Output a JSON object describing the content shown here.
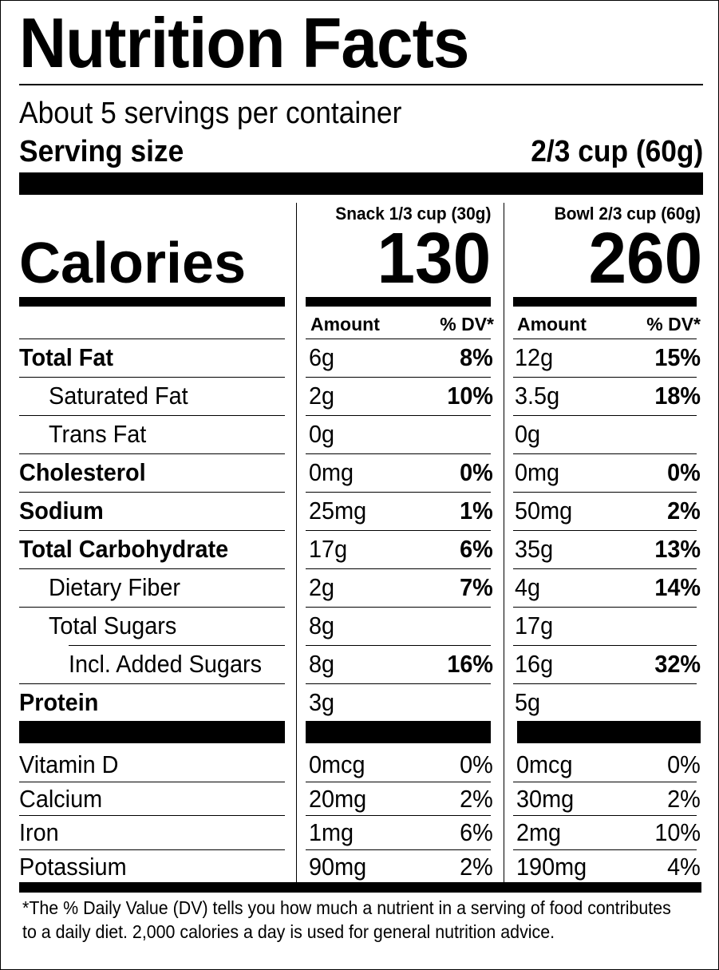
{
  "title": "Nutrition Facts",
  "servings_per_container": "About 5 servings per container",
  "serving_size": {
    "label": "Serving size",
    "value": "2/3 cup (60g)"
  },
  "columns": [
    {
      "header": "Snack 1/3 cup (30g)",
      "calories": "130",
      "amount_label": "Amount",
      "dv_label": "% DV*"
    },
    {
      "header": "Bowl 2/3 cup (60g)",
      "calories": "260",
      "amount_label": "Amount",
      "dv_label": "% DV*"
    }
  ],
  "calories_label": "Calories",
  "nutrients": [
    {
      "name": "Total Fat",
      "bold": true,
      "indent": 0,
      "snack_amount": "6g",
      "snack_dv": "8%",
      "bowl_amount": "12g",
      "bowl_dv": "15%"
    },
    {
      "name": "Saturated Fat",
      "bold": false,
      "indent": 1,
      "snack_amount": "2g",
      "snack_dv": "10%",
      "bowl_amount": "3.5g",
      "bowl_dv": "18%"
    },
    {
      "name": "Trans Fat",
      "bold": false,
      "indent": 1,
      "snack_amount": "0g",
      "snack_dv": "",
      "bowl_amount": "0g",
      "bowl_dv": ""
    },
    {
      "name": "Cholesterol",
      "bold": true,
      "indent": 0,
      "snack_amount": "0mg",
      "snack_dv": "0%",
      "bowl_amount": "0mg",
      "bowl_dv": "0%"
    },
    {
      "name": "Sodium",
      "bold": true,
      "indent": 0,
      "snack_amount": "25mg",
      "snack_dv": "1%",
      "bowl_amount": "50mg",
      "bowl_dv": "2%"
    },
    {
      "name": "Total Carbohydrate",
      "bold": true,
      "indent": 0,
      "snack_amount": "17g",
      "snack_dv": "6%",
      "bowl_amount": "35g",
      "bowl_dv": "13%"
    },
    {
      "name": "Dietary Fiber",
      "bold": false,
      "indent": 1,
      "snack_amount": "2g",
      "snack_dv": "7%",
      "bowl_amount": "4g",
      "bowl_dv": "14%"
    },
    {
      "name": "Total Sugars",
      "bold": false,
      "indent": 1,
      "snack_amount": "8g",
      "snack_dv": "",
      "bowl_amount": "17g",
      "bowl_dv": ""
    },
    {
      "name": "Incl. Added Sugars",
      "bold": false,
      "indent": 2,
      "snack_amount": "8g",
      "snack_dv": "16%",
      "bowl_amount": "16g",
      "bowl_dv": "32%"
    },
    {
      "name": "Protein",
      "bold": true,
      "indent": 0,
      "snack_amount": "3g",
      "snack_dv": "",
      "bowl_amount": "5g",
      "bowl_dv": ""
    }
  ],
  "vitamins": [
    {
      "name": "Vitamin D",
      "snack_amount": "0mcg",
      "snack_dv": "0%",
      "bowl_amount": "0mcg",
      "bowl_dv": "0%"
    },
    {
      "name": "Calcium",
      "snack_amount": "20mg",
      "snack_dv": "2%",
      "bowl_amount": "30mg",
      "bowl_dv": "2%"
    },
    {
      "name": "Iron",
      "snack_amount": "1mg",
      "snack_dv": "6%",
      "bowl_amount": "2mg",
      "bowl_dv": "10%"
    },
    {
      "name": "Potassium",
      "snack_amount": "90mg",
      "snack_dv": "2%",
      "bowl_amount": "190mg",
      "bowl_dv": "4%"
    }
  ],
  "footnote": "*The % Daily Value (DV) tells you how much a nutrient in a serving of food contributes to a daily diet. 2,000 calories a day is used for general nutrition advice."
}
